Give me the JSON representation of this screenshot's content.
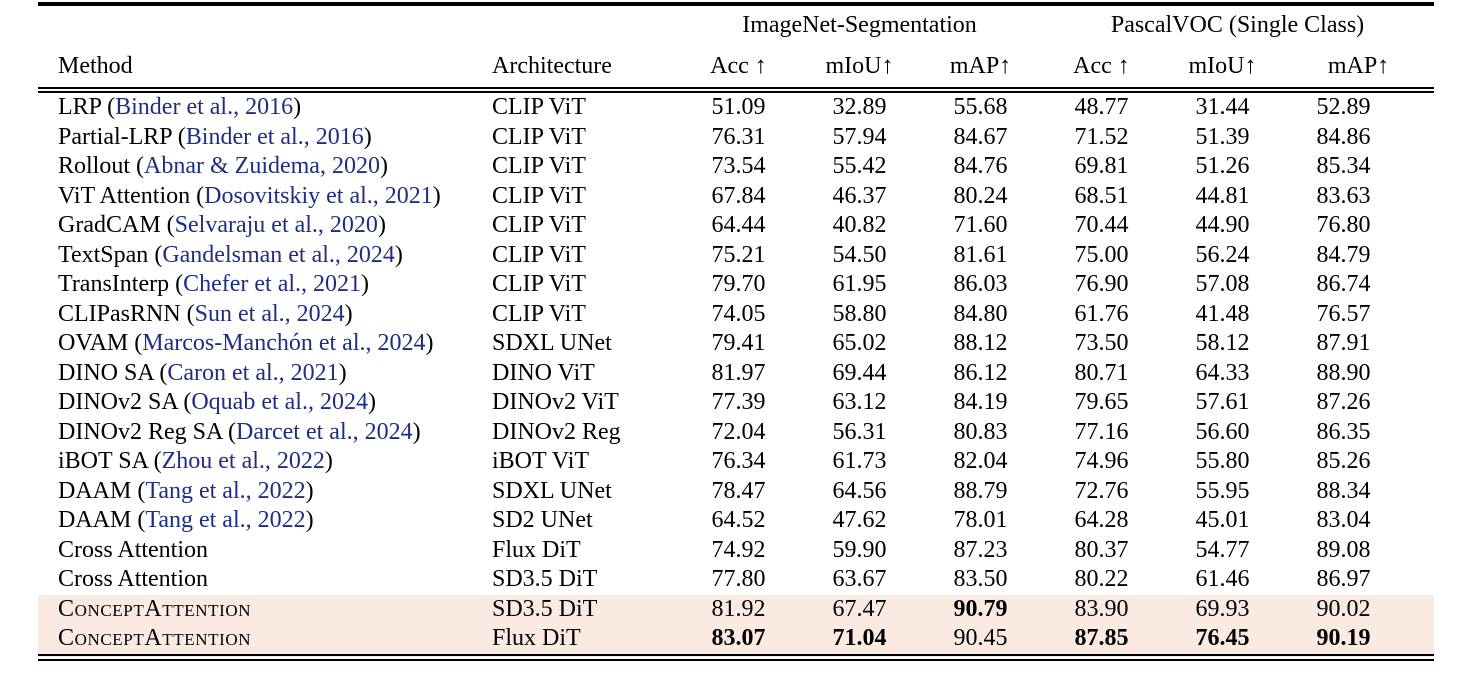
{
  "page": {
    "background_color": "#ffffff",
    "highlight_color": "#faeae1",
    "citation_color": "#1d2e83"
  },
  "table": {
    "group_headers": [
      "ImageNet-Segmentation",
      "PascalVOC (Single Class)"
    ],
    "columns": [
      "Method",
      "Architecture",
      "Acc ↑",
      "mIoU↑",
      "mAP↑",
      "Acc ↑",
      "mIoU↑",
      "mAP↑"
    ],
    "rows": [
      {
        "method": "LRP",
        "citation": "Binder et al., 2016",
        "smallcaps": false,
        "highlight": false,
        "architecture": "CLIP ViT",
        "values": [
          "51.09",
          "32.89",
          "55.68",
          "48.77",
          "31.44",
          "52.89"
        ]
      },
      {
        "method": "Partial-LRP",
        "citation": "Binder et al., 2016",
        "smallcaps": false,
        "highlight": false,
        "architecture": "CLIP ViT",
        "values": [
          "76.31",
          "57.94",
          "84.67",
          "71.52",
          "51.39",
          "84.86"
        ]
      },
      {
        "method": "Rollout",
        "citation": "Abnar & Zuidema, 2020",
        "smallcaps": false,
        "highlight": false,
        "architecture": "CLIP ViT",
        "values": [
          "73.54",
          "55.42",
          "84.76",
          "69.81",
          "51.26",
          "85.34"
        ]
      },
      {
        "method": "ViT Attention",
        "citation": "Dosovitskiy et al., 2021",
        "smallcaps": false,
        "highlight": false,
        "architecture": "CLIP ViT",
        "values": [
          "67.84",
          "46.37",
          "80.24",
          "68.51",
          "44.81",
          "83.63"
        ]
      },
      {
        "method": "GradCAM",
        "citation": "Selvaraju et al., 2020",
        "smallcaps": false,
        "highlight": false,
        "architecture": "CLIP ViT",
        "values": [
          "64.44",
          "40.82",
          "71.60",
          "70.44",
          "44.90",
          "76.80"
        ]
      },
      {
        "method": "TextSpan",
        "citation": "Gandelsman et al., 2024",
        "smallcaps": false,
        "highlight": false,
        "architecture": "CLIP ViT",
        "values": [
          "75.21",
          "54.50",
          "81.61",
          "75.00",
          "56.24",
          "84.79"
        ]
      },
      {
        "method": "TransInterp",
        "citation": "Chefer et al., 2021",
        "smallcaps": false,
        "highlight": false,
        "architecture": "CLIP ViT",
        "values": [
          "79.70",
          "61.95",
          "86.03",
          "76.90",
          "57.08",
          "86.74"
        ]
      },
      {
        "method": "CLIPasRNN",
        "citation": "Sun et al., 2024",
        "smallcaps": false,
        "highlight": false,
        "architecture": "CLIP ViT",
        "values": [
          "74.05",
          "58.80",
          "84.80",
          "61.76",
          "41.48",
          "76.57"
        ]
      },
      {
        "method": "OVAM",
        "citation": "Marcos-Manchón et al., 2024",
        "smallcaps": false,
        "highlight": false,
        "architecture": "SDXL UNet",
        "values": [
          "79.41",
          "65.02",
          "88.12",
          "73.50",
          "58.12",
          "87.91"
        ]
      },
      {
        "method": "DINO SA",
        "citation": "Caron et al., 2021",
        "smallcaps": false,
        "highlight": false,
        "architecture": "DINO ViT",
        "values": [
          "81.97",
          "69.44",
          "86.12",
          "80.71",
          "64.33",
          "88.90"
        ]
      },
      {
        "method": "DINOv2 SA",
        "citation": "Oquab et al., 2024",
        "smallcaps": false,
        "highlight": false,
        "architecture": "DINOv2 ViT",
        "values": [
          "77.39",
          "63.12",
          "84.19",
          "79.65",
          "57.61",
          "87.26"
        ]
      },
      {
        "method": "DINOv2 Reg SA",
        "citation": "Darcet et al., 2024",
        "smallcaps": false,
        "highlight": false,
        "architecture": "DINOv2 Reg",
        "values": [
          "72.04",
          "56.31",
          "80.83",
          "77.16",
          "56.60",
          "86.35"
        ]
      },
      {
        "method": "iBOT SA",
        "citation": "Zhou et al., 2022",
        "smallcaps": false,
        "highlight": false,
        "architecture": "iBOT ViT",
        "values": [
          "76.34",
          "61.73",
          "82.04",
          "74.96",
          "55.80",
          "85.26"
        ]
      },
      {
        "method": "DAAM",
        "citation": "Tang et al., 2022",
        "smallcaps": false,
        "highlight": false,
        "architecture": "SDXL UNet",
        "values": [
          "78.47",
          "64.56",
          "88.79",
          "72.76",
          "55.95",
          "88.34"
        ]
      },
      {
        "method": "DAAM",
        "citation": "Tang et al., 2022",
        "smallcaps": false,
        "highlight": false,
        "architecture": "SD2 UNet",
        "values": [
          "64.52",
          "47.62",
          "78.01",
          "64.28",
          "45.01",
          "83.04"
        ]
      },
      {
        "method": "Cross Attention",
        "citation": "",
        "smallcaps": false,
        "highlight": false,
        "architecture": "Flux DiT",
        "values": [
          "74.92",
          "59.90",
          "87.23",
          "80.37",
          "54.77",
          "89.08"
        ]
      },
      {
        "method": "Cross Attention",
        "citation": "",
        "smallcaps": false,
        "highlight": false,
        "architecture": "SD3.5 DiT",
        "values": [
          "77.80",
          "63.67",
          "83.50",
          "80.22",
          "61.46",
          "86.97"
        ]
      },
      {
        "method": "ConceptAttention",
        "citation": "",
        "smallcaps": true,
        "highlight": true,
        "architecture": "SD3.5 DiT",
        "values": [
          "81.92",
          "67.47",
          "90.79",
          "83.90",
          "69.93",
          "90.02"
        ],
        "bold": [
          false,
          false,
          true,
          false,
          false,
          false
        ]
      },
      {
        "method": "ConceptAttention",
        "citation": "",
        "smallcaps": true,
        "highlight": true,
        "architecture": "Flux DiT",
        "values": [
          "83.07",
          "71.04",
          "90.45",
          "87.85",
          "76.45",
          "90.19"
        ],
        "bold": [
          true,
          true,
          false,
          true,
          true,
          true
        ]
      }
    ]
  }
}
